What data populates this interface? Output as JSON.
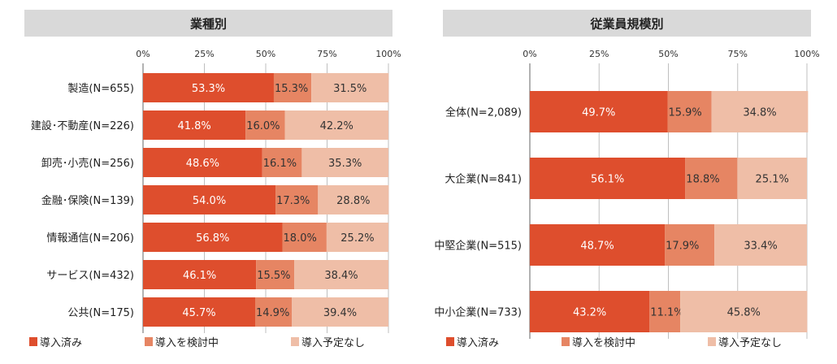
{
  "legend": {
    "implemented": "導入済み",
    "considering": "導入を検討中",
    "no_plan": "導入予定なし"
  },
  "colors": {
    "implemented": "#de4e2d",
    "considering": "#e68563",
    "no_plan": "#efbea7",
    "header_bg": "#d9d9d9",
    "gridline": "#bfbfbf"
  },
  "chart_data": [
    {
      "type": "bar",
      "orientation": "horizontal-stacked",
      "title": "業種別",
      "ticks": [
        "0%",
        "25%",
        "50%",
        "75%",
        "100%"
      ],
      "xlim": [
        0,
        100
      ],
      "categories": [
        "製造(N=655)",
        "建設･不動産(N=226)",
        "卸売･小売(N=256)",
        "金融･保険(N=139)",
        "情報通信(N=206)",
        "サービス(N=432)",
        "公共(N=175)"
      ],
      "series": [
        {
          "name": "導入済み",
          "values": [
            53.3,
            41.8,
            48.6,
            54.0,
            56.8,
            46.1,
            45.7
          ],
          "labels": [
            "53.3%",
            "41.8%",
            "48.6%",
            "54.0%",
            "56.8%",
            "46.1%",
            "45.7%"
          ]
        },
        {
          "name": "導入を検討中",
          "values": [
            15.3,
            16.0,
            16.1,
            17.3,
            18.0,
            15.5,
            14.9
          ],
          "labels": [
            "15.3%",
            "16.0%",
            "16.1%",
            "17.3%",
            "18.0%",
            "15.5%",
            "14.9%"
          ]
        },
        {
          "name": "導入予定なし",
          "values": [
            31.5,
            42.2,
            35.3,
            28.8,
            25.2,
            38.4,
            39.4
          ],
          "labels": [
            "31.5%",
            "42.2%",
            "35.3%",
            "28.8%",
            "25.2%",
            "38.4%",
            "39.4%"
          ]
        }
      ]
    },
    {
      "type": "bar",
      "orientation": "horizontal-stacked",
      "title": "従業員規模別",
      "ticks": [
        "0%",
        "25%",
        "50%",
        "75%",
        "100%"
      ],
      "xlim": [
        0,
        100
      ],
      "categories": [
        "全体(N=2,089)",
        "大企業(N=841)",
        "中堅企業(N=515)",
        "中小企業(N=733)"
      ],
      "series": [
        {
          "name": "導入済み",
          "values": [
            49.7,
            56.1,
            48.7,
            43.2
          ],
          "labels": [
            "49.7%",
            "56.1%",
            "48.7%",
            "43.2%"
          ]
        },
        {
          "name": "導入を検討中",
          "values": [
            15.9,
            18.8,
            17.9,
            11.1
          ],
          "labels": [
            "15.9%",
            "18.8%",
            "17.9%",
            "11.1%"
          ]
        },
        {
          "name": "導入予定なし",
          "values": [
            34.8,
            25.1,
            33.4,
            45.8
          ],
          "labels": [
            "34.8%",
            "25.1%",
            "33.4%",
            "45.8%"
          ]
        }
      ]
    }
  ]
}
